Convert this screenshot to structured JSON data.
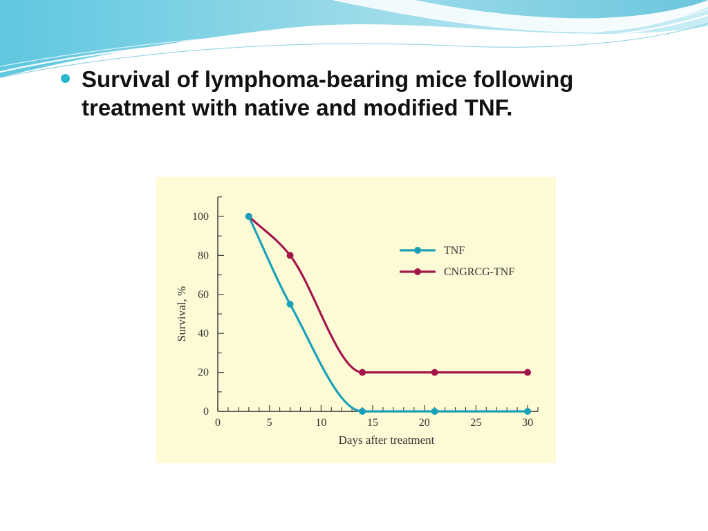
{
  "slide": {
    "title": "Survival of lymphoma-bearing mice following treatment with native and modified TNF.",
    "accent_color": "#2bb6cf",
    "bullet_icon": "bullet-dot-icon"
  },
  "chart_data": {
    "type": "line",
    "title": "",
    "xlabel": "Days after treatment",
    "ylabel": "Survival, %",
    "xlim": [
      0,
      31
    ],
    "ylim": [
      0,
      100
    ],
    "x_ticks": [
      0,
      5,
      10,
      15,
      20,
      25,
      30
    ],
    "y_ticks": [
      0,
      20,
      40,
      60,
      80,
      100
    ],
    "grid": false,
    "legend_position": "top-right",
    "background_color": "#fdfbd6",
    "series": [
      {
        "name": "TNF",
        "color": "#1aa0b8",
        "x": [
          3,
          7,
          14,
          21,
          30
        ],
        "y": [
          100,
          55,
          0,
          0,
          0
        ]
      },
      {
        "name": "CNGRCG-TNF",
        "color": "#a3164c",
        "x": [
          3,
          7,
          14,
          21,
          30
        ],
        "y": [
          100,
          80,
          20,
          20,
          20
        ]
      }
    ]
  }
}
